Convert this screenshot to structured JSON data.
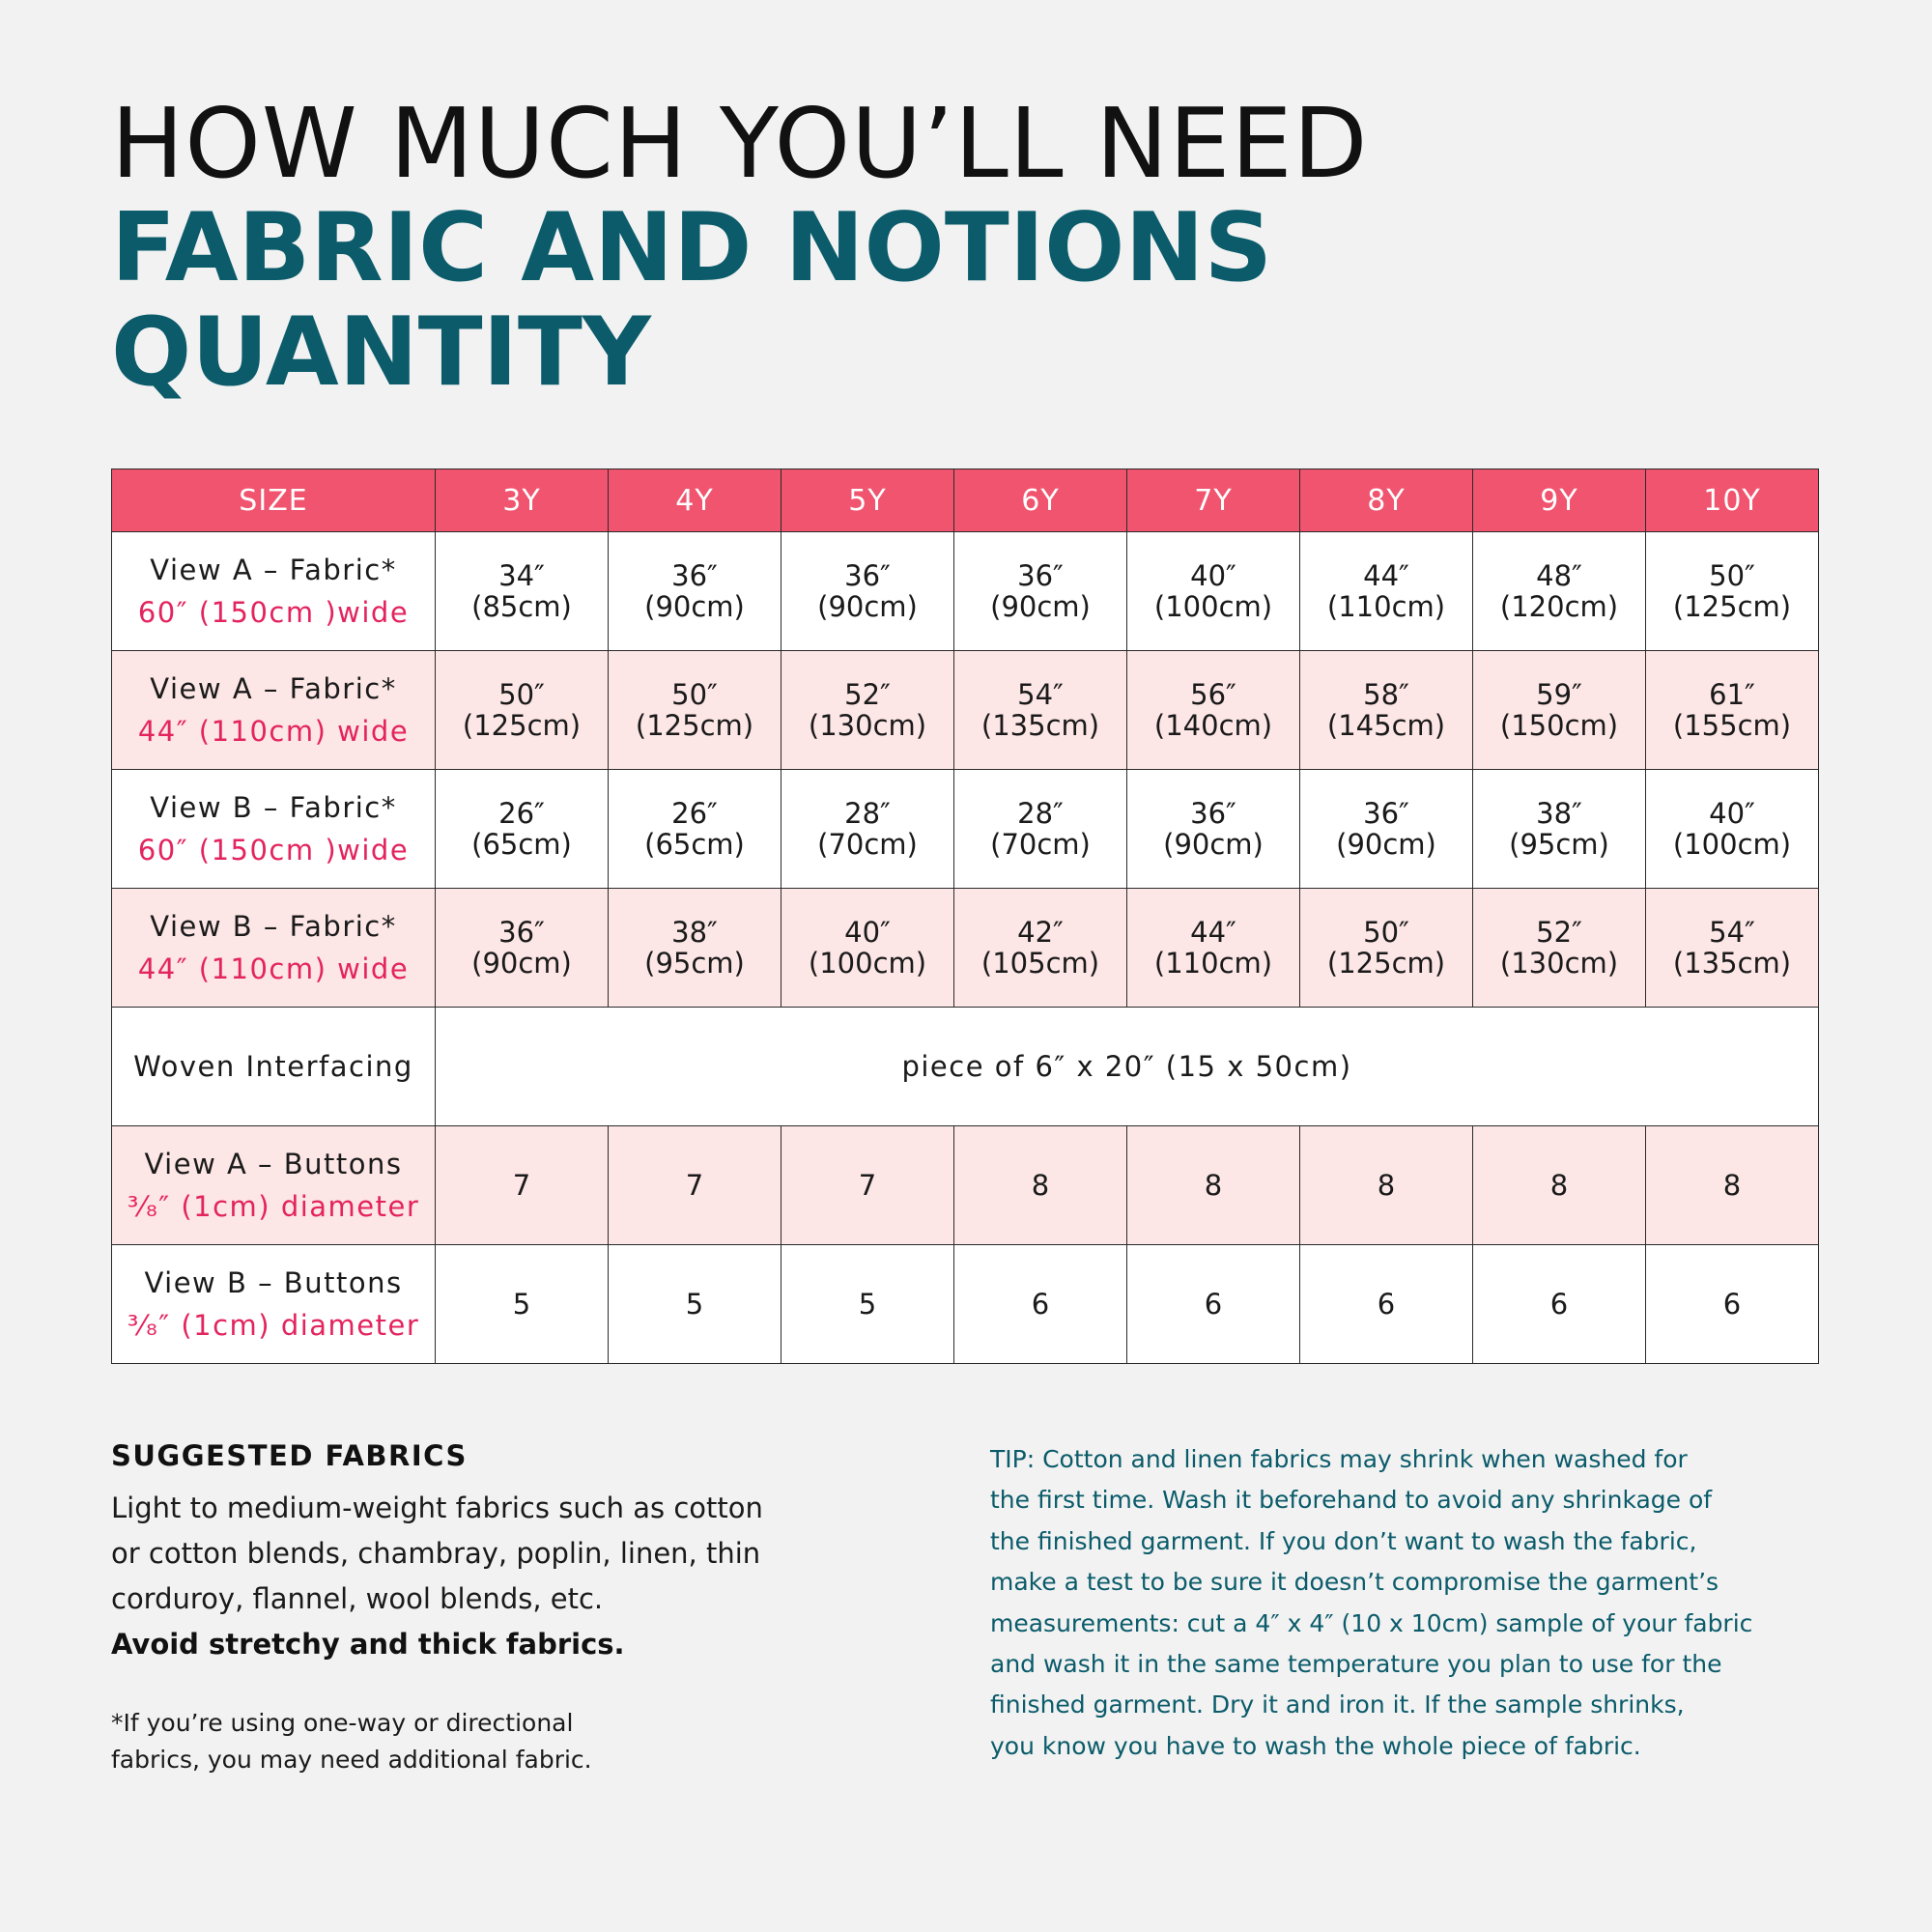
{
  "title": {
    "line1": "HOW MUCH YOU’LL NEED",
    "line2": "FABRIC AND NOTIONS",
    "line3": "QUANTITY"
  },
  "colors": {
    "header_bg": "#f0546e",
    "title_accent": "#0b5b6b",
    "sub_label": "#e3245e",
    "pink_row": "#fde6e6"
  },
  "table": {
    "header": [
      "SIZE",
      "3Y",
      "4Y",
      "5Y",
      "6Y",
      "7Y",
      "8Y",
      "9Y",
      "10Y"
    ],
    "rows": [
      {
        "label": "View A – Fabric*",
        "sublabel": "60″ (150cm )wide",
        "cells": [
          [
            "34″",
            "(85cm)"
          ],
          [
            "36″",
            "(90cm)"
          ],
          [
            "36″",
            "(90cm)"
          ],
          [
            "36″",
            "(90cm)"
          ],
          [
            "40″",
            "(100cm)"
          ],
          [
            "44″",
            "(110cm)"
          ],
          [
            "48″",
            "(120cm)"
          ],
          [
            "50″",
            "(125cm)"
          ]
        ]
      },
      {
        "label": "View A – Fabric*",
        "sublabel": "44″ (110cm) wide",
        "cells": [
          [
            "50″",
            "(125cm)"
          ],
          [
            "50″",
            "(125cm)"
          ],
          [
            "52″",
            "(130cm)"
          ],
          [
            "54″",
            "(135cm)"
          ],
          [
            "56″",
            "(140cm)"
          ],
          [
            "58″",
            "(145cm)"
          ],
          [
            "59″",
            "(150cm)"
          ],
          [
            "61″",
            "(155cm)"
          ]
        ]
      },
      {
        "label": "View B – Fabric*",
        "sublabel": "60″ (150cm )wide",
        "cells": [
          [
            "26″",
            "(65cm)"
          ],
          [
            "26″",
            "(65cm)"
          ],
          [
            "28″",
            "(70cm)"
          ],
          [
            "28″",
            "(70cm)"
          ],
          [
            "36″",
            "(90cm)"
          ],
          [
            "36″",
            "(90cm)"
          ],
          [
            "38″",
            "(95cm)"
          ],
          [
            "40″",
            "(100cm)"
          ]
        ]
      },
      {
        "label": "View B – Fabric*",
        "sublabel": "44″ (110cm) wide",
        "cells": [
          [
            "36″",
            "(90cm)"
          ],
          [
            "38″",
            "(95cm)"
          ],
          [
            "40″",
            "(100cm)"
          ],
          [
            "42″",
            "(105cm)"
          ],
          [
            "44″",
            "(110cm)"
          ],
          [
            "50″",
            "(125cm)"
          ],
          [
            "52″",
            "(130cm)"
          ],
          [
            "54″",
            "(135cm)"
          ]
        ]
      },
      {
        "label": "Woven Interfacing",
        "span_text": "piece of 6″ x 20″ (15 x 50cm)"
      },
      {
        "label": "View A – Buttons",
        "sublabel": "³⁄₈″ (1cm) diameter",
        "cells": [
          "7",
          "7",
          "7",
          "8",
          "8",
          "8",
          "8",
          "8"
        ]
      },
      {
        "label": "View B – Buttons",
        "sublabel": "³⁄₈″ (1cm) diameter",
        "cells": [
          "5",
          "5",
          "5",
          "6",
          "6",
          "6",
          "6",
          "6"
        ]
      }
    ]
  },
  "suggested": {
    "heading": "SUGGESTED FABRICS",
    "lines": [
      "Light to medium-weight fabrics such as cotton",
      "or cotton blends, chambray, poplin, linen, thin",
      "corduroy, flannel, wool blends, etc."
    ],
    "bold": "Avoid stretchy and thick fabrics."
  },
  "footnote": {
    "lines": [
      "*If you’re using one-way or directional",
      "fabrics, you may need additional fabric."
    ]
  },
  "tip": {
    "lines": [
      "TIP: Cotton and linen fabrics may shrink when washed for",
      "the first time. Wash it beforehand to avoid any shrinkage of",
      "the finished garment. If you don’t want to wash the fabric,",
      "make a test to be sure it doesn’t compromise the garment’s",
      "measurements: cut a 4″ x 4″ (10 x 10cm) sample of your fabric",
      "and wash it in the same temperature you plan to use for the",
      "finished garment. Dry it and iron it. If the sample shrinks,",
      "you know you have to wash the whole piece of fabric."
    ]
  }
}
